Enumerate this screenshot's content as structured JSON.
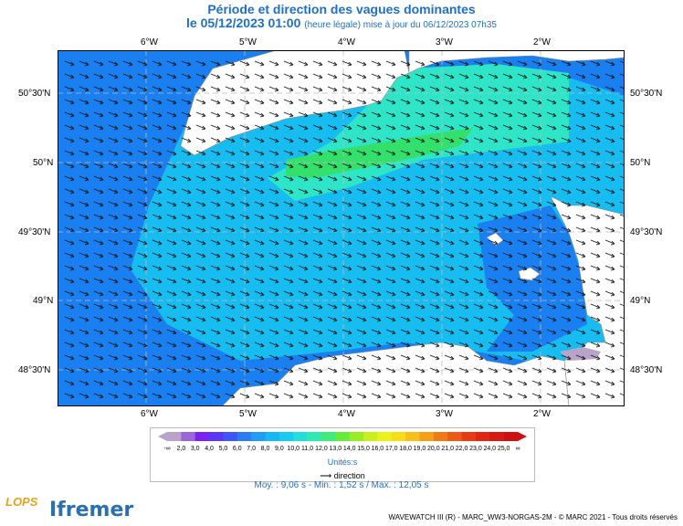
{
  "title_line1": "Période et direction des vagues dominantes",
  "title_line2_main": "le 05/12/2023 01:00",
  "title_line2_small": "(heure légale) mise à jour du 06/12/2023 07h35",
  "lon_labels": [
    "6°W",
    "5°W",
    "4°W",
    "3°W",
    "2°W"
  ],
  "lat_labels": [
    "50°30'N",
    "50°N",
    "49°30'N",
    "49°N",
    "48°30'N"
  ],
  "legend": {
    "ticks": [
      "-∞",
      "2,0",
      "3,0",
      "4,0",
      "5,0",
      "6,0",
      "7,0",
      "8,0",
      "9,0",
      "10,0",
      "11,0",
      "12,0",
      "13,0",
      "14,0",
      "15,0",
      "16,0",
      "17,0",
      "18,0",
      "19,0",
      "20,0",
      "21,0",
      "22,0",
      "23,0",
      "24,0",
      "25,0",
      "∞"
    ],
    "colors": [
      "#b9a3c9",
      "#9b67d8",
      "#7a22ef",
      "#5a35f3",
      "#3f55f4",
      "#2a7cf0",
      "#1e9df2",
      "#17b8f2",
      "#17ccee",
      "#20e0d8",
      "#2ee9b0",
      "#3fe97a",
      "#66ec3c",
      "#99ee22",
      "#c7f01a",
      "#ecf217",
      "#f6dd17",
      "#f7bf17",
      "#f59e16",
      "#f07b15",
      "#ec5a15",
      "#e73b14",
      "#e12512",
      "#d81812",
      "#d00f10"
    ],
    "units": "Unités:s",
    "direction_label": "direction"
  },
  "stats": "Moy. : 9,06 s   -   Min. : 1,52 s / Max. : 12,05 s",
  "footer": "WAVEWATCH III (R) - MARC_WW3-NORGAS-2M - © MARC 2021 - Tous droits réservés",
  "logos": {
    "left": "LOPS",
    "right": "Ifremer"
  },
  "colors": {
    "deep": "#1a7ff0",
    "mid": "#17bdf0",
    "shallow": "#2ee5c8",
    "band": "#33e06c",
    "land": "#ffffff",
    "title": "#1f6fc4"
  }
}
